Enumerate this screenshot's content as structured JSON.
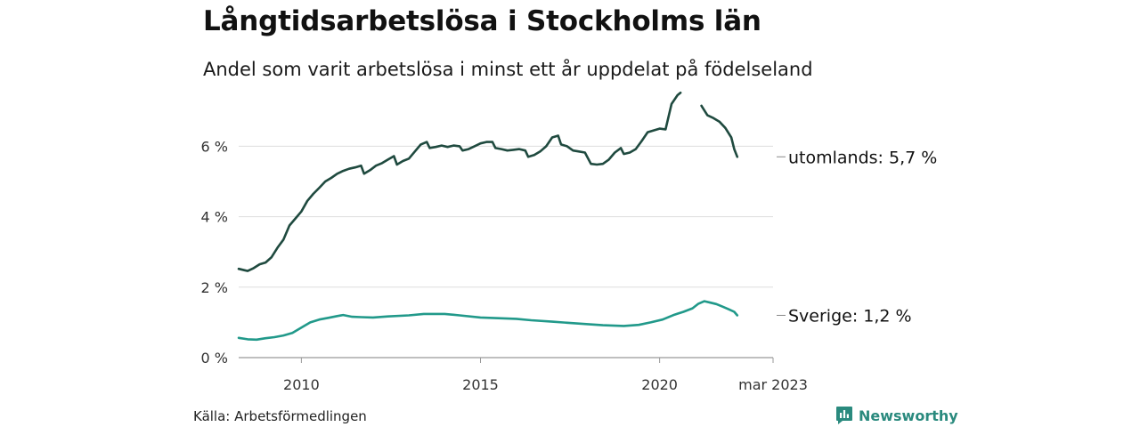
{
  "title": "Långtidsarbetslösa i Stockholms län",
  "subtitle": "Andel som varit arbetslösa i minst ett år uppdelat på födelseland",
  "source": "Källa: Arbetsförmedlingen",
  "brand": {
    "name": "Newsworthy",
    "icon": "newsworthy-logo-icon"
  },
  "colors": {
    "foreign": "#1f4a3f",
    "sweden": "#21998a",
    "grid": "#dddddd",
    "axis": "#999999"
  },
  "chart_data": {
    "type": "line",
    "title": "Långtidsarbetslösa i Stockholms län",
    "subtitle": "Andel som varit arbetslösa i minst ett år uppdelat på födelseland",
    "y_unit": "%",
    "ylim": [
      0,
      7.5
    ],
    "xlim": [
      "2008-04",
      "2023-03"
    ],
    "y_ticks": [
      {
        "value": 0,
        "label": "0 %"
      },
      {
        "value": 2,
        "label": "2 %"
      },
      {
        "value": 4,
        "label": "4 %"
      },
      {
        "value": 6,
        "label": "6 %"
      }
    ],
    "x_ticks": [
      {
        "value": "2010-01",
        "label": "2010"
      },
      {
        "value": "2015-01",
        "label": "2015"
      },
      {
        "value": "2020-01",
        "label": "2020"
      },
      {
        "value": "2023-03",
        "label": "mar 2023"
      }
    ],
    "grid": true,
    "legend": "end-of-line labels",
    "series": [
      {
        "name": "utomlands",
        "end_label": "utomlands: 5,7 %",
        "color": "#1f4a3f",
        "points": [
          [
            "2008-04",
            2.52
          ],
          [
            "2008-06",
            2.48
          ],
          [
            "2008-07",
            2.46
          ],
          [
            "2008-09",
            2.54
          ],
          [
            "2008-11",
            2.65
          ],
          [
            "2009-01",
            2.7
          ],
          [
            "2009-03",
            2.85
          ],
          [
            "2009-05",
            3.12
          ],
          [
            "2009-07",
            3.35
          ],
          [
            "2009-09",
            3.75
          ],
          [
            "2009-11",
            3.95
          ],
          [
            "2010-01",
            4.15
          ],
          [
            "2010-03",
            4.45
          ],
          [
            "2010-05",
            4.65
          ],
          [
            "2010-07",
            4.82
          ],
          [
            "2010-09",
            5.0
          ],
          [
            "2010-11",
            5.1
          ],
          [
            "2011-01",
            5.22
          ],
          [
            "2011-03",
            5.3
          ],
          [
            "2011-05",
            5.36
          ],
          [
            "2011-07",
            5.4
          ],
          [
            "2011-09",
            5.45
          ],
          [
            "2011-10",
            5.22
          ],
          [
            "2011-12",
            5.32
          ],
          [
            "2012-02",
            5.45
          ],
          [
            "2012-04",
            5.52
          ],
          [
            "2012-06",
            5.62
          ],
          [
            "2012-08",
            5.72
          ],
          [
            "2012-09",
            5.48
          ],
          [
            "2012-11",
            5.58
          ],
          [
            "2013-01",
            5.65
          ],
          [
            "2013-03",
            5.85
          ],
          [
            "2013-05",
            6.05
          ],
          [
            "2013-07",
            6.12
          ],
          [
            "2013-08",
            5.95
          ],
          [
            "2013-10",
            5.98
          ],
          [
            "2013-12",
            6.02
          ],
          [
            "2014-02",
            5.98
          ],
          [
            "2014-04",
            6.02
          ],
          [
            "2014-06",
            6.0
          ],
          [
            "2014-07",
            5.88
          ],
          [
            "2014-09",
            5.92
          ],
          [
            "2014-11",
            6.0
          ],
          [
            "2015-01",
            6.08
          ],
          [
            "2015-03",
            6.12
          ],
          [
            "2015-05",
            6.12
          ],
          [
            "2015-06",
            5.95
          ],
          [
            "2015-08",
            5.92
          ],
          [
            "2015-10",
            5.88
          ],
          [
            "2015-12",
            5.9
          ],
          [
            "2016-02",
            5.92
          ],
          [
            "2016-04",
            5.88
          ],
          [
            "2016-05",
            5.7
          ],
          [
            "2016-07",
            5.75
          ],
          [
            "2016-09",
            5.85
          ],
          [
            "2016-11",
            6.0
          ],
          [
            "2017-01",
            6.25
          ],
          [
            "2017-03",
            6.3
          ],
          [
            "2017-04",
            6.05
          ],
          [
            "2017-06",
            6.0
          ],
          [
            "2017-08",
            5.88
          ],
          [
            "2017-10",
            5.85
          ],
          [
            "2017-12",
            5.82
          ],
          [
            "2018-02",
            5.5
          ],
          [
            "2018-04",
            5.48
          ],
          [
            "2018-06",
            5.5
          ],
          [
            "2018-08",
            5.62
          ],
          [
            "2018-10",
            5.82
          ],
          [
            "2018-12",
            5.95
          ],
          [
            "2019-01",
            5.78
          ],
          [
            "2019-03",
            5.82
          ],
          [
            "2019-05",
            5.92
          ],
          [
            "2019-07",
            6.15
          ],
          [
            "2019-09",
            6.4
          ],
          [
            "2019-11",
            6.45
          ],
          [
            "2020-01",
            6.5
          ],
          [
            "2020-03",
            6.48
          ],
          [
            "2020-05",
            7.2
          ],
          [
            "2020-07",
            7.45
          ],
          [
            "2020-08",
            7.52
          ],
          null,
          [
            "2021-03",
            7.15
          ],
          [
            "2021-05",
            6.88
          ],
          [
            "2021-07",
            6.8
          ],
          [
            "2021-09",
            6.7
          ],
          [
            "2021-11",
            6.52
          ],
          [
            "2022-01",
            6.25
          ],
          [
            "2022-02",
            5.92
          ],
          [
            "2022-03",
            5.7
          ]
        ]
      },
      {
        "name": "Sverige",
        "end_label": "Sverige: 1,2 %",
        "color": "#21998a",
        "points": [
          [
            "2008-04",
            0.56
          ],
          [
            "2008-07",
            0.52
          ],
          [
            "2008-10",
            0.51
          ],
          [
            "2009-01",
            0.55
          ],
          [
            "2009-04",
            0.58
          ],
          [
            "2009-07",
            0.63
          ],
          [
            "2009-10",
            0.7
          ],
          [
            "2010-01",
            0.85
          ],
          [
            "2010-04",
            1.0
          ],
          [
            "2010-07",
            1.08
          ],
          [
            "2010-10",
            1.13
          ],
          [
            "2011-01",
            1.18
          ],
          [
            "2011-03",
            1.21
          ],
          [
            "2011-06",
            1.16
          ],
          [
            "2011-09",
            1.15
          ],
          [
            "2012-01",
            1.14
          ],
          [
            "2012-06",
            1.17
          ],
          [
            "2013-01",
            1.2
          ],
          [
            "2013-06",
            1.24
          ],
          [
            "2014-01",
            1.24
          ],
          [
            "2014-06",
            1.2
          ],
          [
            "2015-01",
            1.14
          ],
          [
            "2015-06",
            1.12
          ],
          [
            "2016-01",
            1.1
          ],
          [
            "2016-06",
            1.06
          ],
          [
            "2017-01",
            1.02
          ],
          [
            "2017-06",
            0.99
          ],
          [
            "2018-01",
            0.95
          ],
          [
            "2018-06",
            0.92
          ],
          [
            "2019-01",
            0.9
          ],
          [
            "2019-06",
            0.93
          ],
          [
            "2019-10",
            1.0
          ],
          [
            "2020-02",
            1.08
          ],
          [
            "2020-06",
            1.22
          ],
          [
            "2020-09",
            1.3
          ],
          [
            "2020-12",
            1.4
          ],
          [
            "2021-02",
            1.53
          ],
          [
            "2021-04",
            1.6
          ],
          [
            "2021-06",
            1.56
          ],
          [
            "2021-08",
            1.52
          ],
          [
            "2021-10",
            1.45
          ],
          [
            "2021-12",
            1.38
          ],
          [
            "2022-02",
            1.3
          ],
          [
            "2022-03",
            1.2
          ]
        ]
      }
    ]
  }
}
